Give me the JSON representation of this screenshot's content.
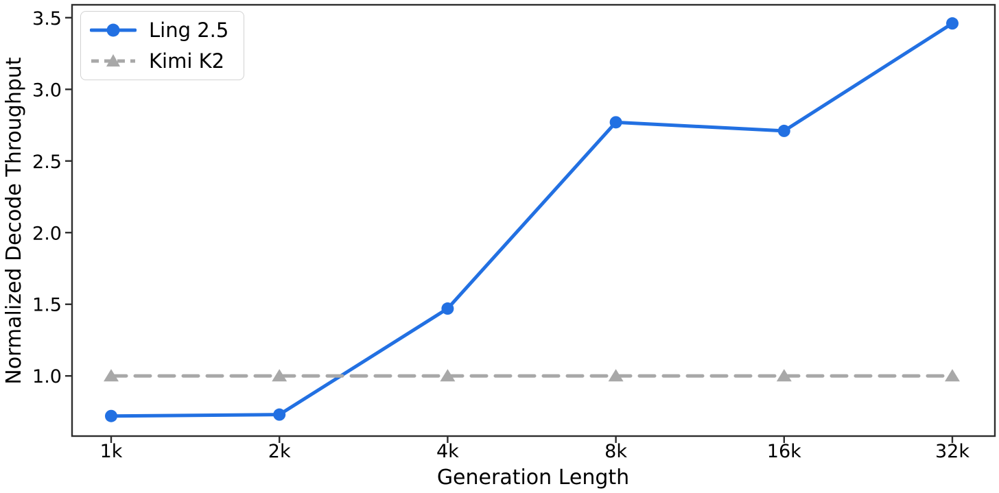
{
  "chart_data": {
    "type": "line",
    "title": "",
    "xlabel": "Generation Length",
    "ylabel": "Normalized Decode Throughput",
    "categories": [
      "1k",
      "2k",
      "4k",
      "8k",
      "16k",
      "32k"
    ],
    "series": [
      {
        "name": "Ling 2.5",
        "values": [
          0.72,
          0.73,
          1.47,
          2.77,
          2.71,
          3.46
        ],
        "color": "#2270e2",
        "line_style": "solid",
        "marker": "circle"
      },
      {
        "name": "Kimi K2",
        "values": [
          1.0,
          1.0,
          1.0,
          1.0,
          1.0,
          1.0
        ],
        "color": "#a8a8a8",
        "line_style": "dashed",
        "marker": "triangle"
      }
    ],
    "y_ticks": [
      "1.0",
      "1.5",
      "2.0",
      "2.5",
      "3.0",
      "3.5"
    ],
    "ylim": [
      0.58,
      3.59
    ],
    "grid": false,
    "legend_position": "upper left",
    "spine_color": "#2d2d2d",
    "text_color": "#000000",
    "background": "#ffffff"
  }
}
